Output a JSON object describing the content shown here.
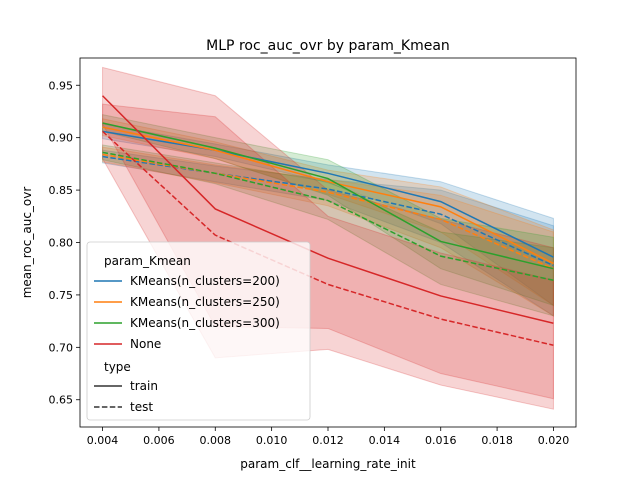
{
  "chart_data": {
    "type": "line",
    "title": "MLP roc_auc_ovr by param_Kmean",
    "xlabel": "param_clf__learning_rate_init",
    "ylabel": "mean_roc_auc_ovr",
    "xlim": [
      0.0032,
      0.0208
    ],
    "ylim": [
      0.624,
      0.976
    ],
    "x": [
      0.004,
      0.008,
      0.012,
      0.016,
      0.02
    ],
    "xticks": [
      "0.004",
      "0.006",
      "0.008",
      "0.010",
      "0.012",
      "0.014",
      "0.016",
      "0.018",
      "0.020"
    ],
    "yticks": [
      "0.65",
      "0.70",
      "0.75",
      "0.80",
      "0.85",
      "0.90",
      "0.95"
    ],
    "grid": false,
    "legend_placement": "lower-left",
    "legend_hue_title": "param_Kmean",
    "legend_style_title": "type",
    "styles": [
      {
        "name": "train",
        "dash": "solid"
      },
      {
        "name": "test",
        "dash": "dashed"
      }
    ],
    "series": [
      {
        "name": "KMeans(n_clusters=200)",
        "color": "#1f77b4",
        "train": {
          "y": [
            0.906,
            0.888,
            0.866,
            0.839,
            0.786
          ],
          "lo": [
            0.899,
            0.882,
            0.857,
            0.818,
            0.74
          ],
          "hi": [
            0.913,
            0.894,
            0.874,
            0.858,
            0.823
          ]
        },
        "test": {
          "y": [
            0.882,
            0.866,
            0.851,
            0.827,
            0.778
          ],
          "lo": [
            0.876,
            0.858,
            0.84,
            0.8,
            0.73
          ],
          "hi": [
            0.888,
            0.873,
            0.86,
            0.85,
            0.816
          ]
        }
      },
      {
        "name": "KMeans(n_clusters=250)",
        "color": "#ff7f0e",
        "train": {
          "y": [
            0.91,
            0.888,
            0.858,
            0.834,
            0.78
          ],
          "lo": [
            0.902,
            0.88,
            0.846,
            0.81,
            0.74
          ],
          "hi": [
            0.918,
            0.896,
            0.869,
            0.853,
            0.812
          ]
        },
        "test": {
          "y": [
            0.884,
            0.866,
            0.848,
            0.822,
            0.775
          ],
          "lo": [
            0.877,
            0.857,
            0.835,
            0.795,
            0.73
          ],
          "hi": [
            0.891,
            0.874,
            0.86,
            0.845,
            0.81
          ]
        }
      },
      {
        "name": "KMeans(n_clusters=300)",
        "color": "#2ca02c",
        "train": {
          "y": [
            0.914,
            0.89,
            0.861,
            0.801,
            0.775
          ],
          "lo": [
            0.906,
            0.88,
            0.845,
            0.775,
            0.74
          ],
          "hi": [
            0.922,
            0.9,
            0.879,
            0.823,
            0.805
          ]
        },
        "test": {
          "y": [
            0.886,
            0.866,
            0.84,
            0.787,
            0.764
          ],
          "lo": [
            0.879,
            0.856,
            0.822,
            0.76,
            0.73
          ],
          "hi": [
            0.893,
            0.876,
            0.858,
            0.81,
            0.795
          ]
        }
      },
      {
        "name": "None",
        "color": "#d62728",
        "train": {
          "y": [
            0.94,
            0.832,
            0.785,
            0.749,
            0.723
          ],
          "lo": [
            0.913,
            0.72,
            0.718,
            0.675,
            0.651
          ],
          "hi": [
            0.967,
            0.94,
            0.85,
            0.822,
            0.795
          ]
        },
        "test": {
          "y": [
            0.906,
            0.807,
            0.76,
            0.727,
            0.702
          ],
          "lo": [
            0.88,
            0.69,
            0.698,
            0.664,
            0.641
          ],
          "hi": [
            0.932,
            0.92,
            0.825,
            0.79,
            0.764
          ]
        }
      }
    ]
  }
}
